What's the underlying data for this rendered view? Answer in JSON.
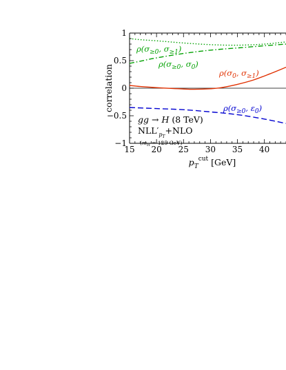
{
  "chart_data": {
    "type": "line",
    "xlabel": "p_T^cut [GeV]",
    "ylabel": "correlation",
    "xlim": [
      15,
      44
    ],
    "ylim": [
      -1,
      1
    ],
    "x_ticks": [
      "15",
      "20",
      "25",
      "30",
      "35",
      "40"
    ],
    "y_ticks": [
      "−1",
      "−0.5",
      "0",
      "0.5",
      "1"
    ],
    "grid": false,
    "zero_line": true,
    "annotations": {
      "process": "gg → H (8 TeV)",
      "order": "NLL'_{pT}+NLO",
      "mass": "(m_H = 125 GeV)"
    },
    "series": [
      {
        "name": "ρ(σ≥0, σ≥1)",
        "color": "#00a000",
        "style": "dotted",
        "x": [
          15,
          17,
          20,
          25,
          30,
          35,
          40,
          44
        ],
        "y": [
          0.9,
          0.88,
          0.86,
          0.82,
          0.79,
          0.78,
          0.8,
          0.84
        ]
      },
      {
        "name": "ρ(σ≥0, σ0)",
        "color": "#00a000",
        "style": "dashdot",
        "x": [
          15,
          17,
          20,
          25,
          30,
          35,
          40,
          44
        ],
        "y": [
          0.45,
          0.49,
          0.55,
          0.63,
          0.69,
          0.73,
          0.77,
          0.8
        ]
      },
      {
        "name": "ρ(σ0, σ≥1)",
        "color": "#e03000",
        "style": "solid",
        "x": [
          15,
          17,
          20,
          23,
          25,
          27,
          30,
          32,
          35,
          38,
          41,
          44
        ],
        "y": [
          0.05,
          0.03,
          0.01,
          -0.005,
          -0.015,
          -0.02,
          -0.01,
          0.01,
          0.07,
          0.15,
          0.26,
          0.38
        ]
      },
      {
        "name": "ρ(σ≥0, ε0)",
        "color": "#0000d0",
        "style": "dashed",
        "x": [
          15,
          20,
          25,
          30,
          35,
          40,
          44
        ],
        "y": [
          -0.35,
          -0.37,
          -0.39,
          -0.43,
          -0.48,
          -0.56,
          -0.64
        ]
      }
    ]
  }
}
